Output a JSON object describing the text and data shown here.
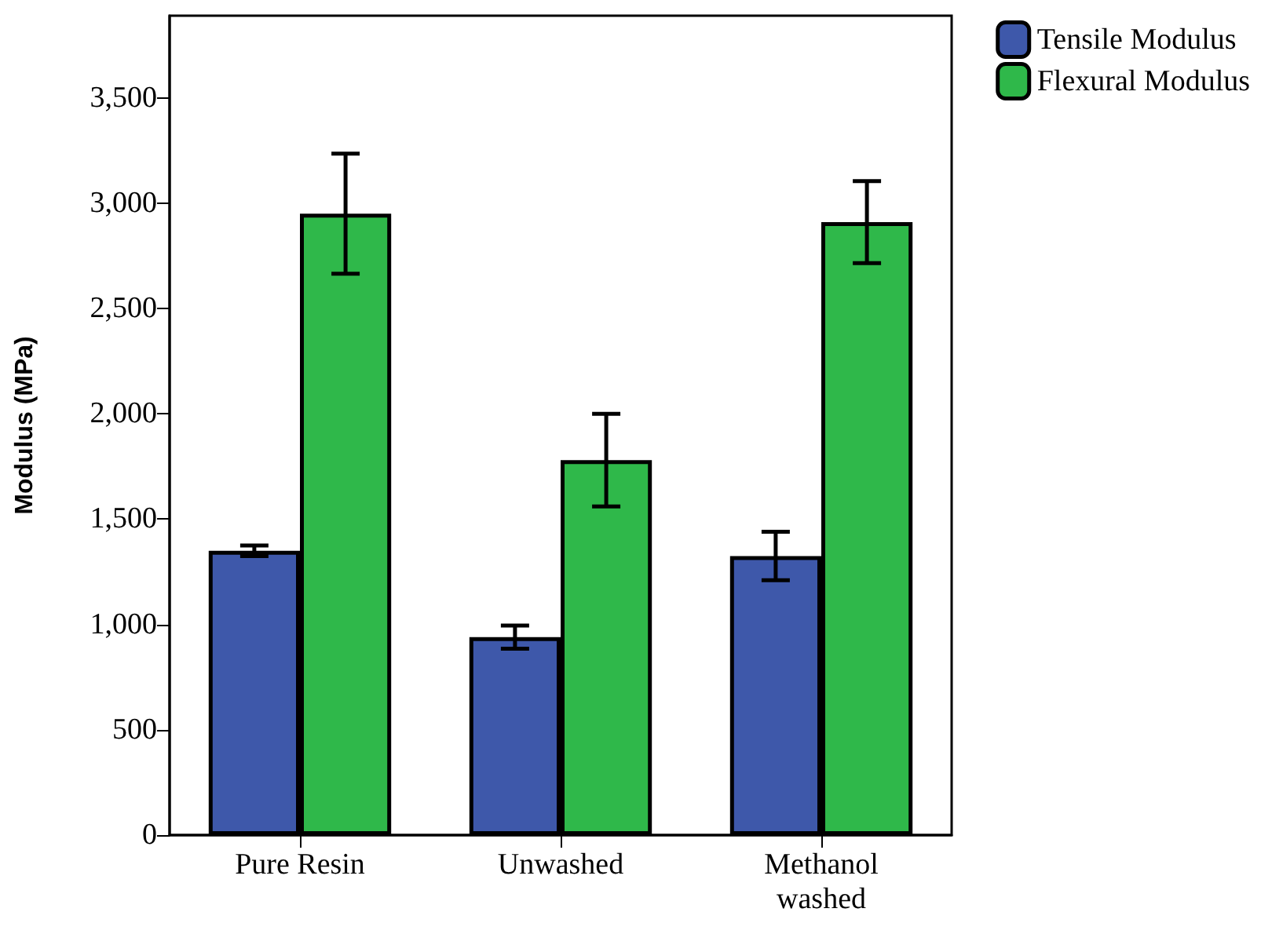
{
  "chart_data": {
    "type": "bar",
    "ylabel": "Modulus (MPa)",
    "categories": [
      "Pure Resin",
      "Unwashed",
      "Methanol\nwashed"
    ],
    "series": [
      {
        "name": "Tensile Modulus",
        "color": "#3e58aa",
        "values": [
          1350,
          940,
          1325
        ],
        "errors": [
          25,
          55,
          115
        ]
      },
      {
        "name": "Flexural Modulus",
        "color": "#2fb84a",
        "values": [
          2950,
          1780,
          2910
        ],
        "errors": [
          285,
          220,
          195
        ]
      }
    ],
    "ylim": [
      0,
      3890
    ],
    "yticks": [
      0,
      {
        "value": 500,
        "label": "500"
      },
      {
        "value": 1000,
        "label": "1,000"
      },
      {
        "value": 1500,
        "label": "1,500"
      },
      {
        "value": 2000,
        "label": "2,000"
      },
      {
        "value": 2500,
        "label": "2,500"
      },
      {
        "value": 3000,
        "label": "3,000"
      },
      {
        "value": 3500,
        "label": "3,500"
      }
    ],
    "grid": false,
    "legend": "top right"
  }
}
